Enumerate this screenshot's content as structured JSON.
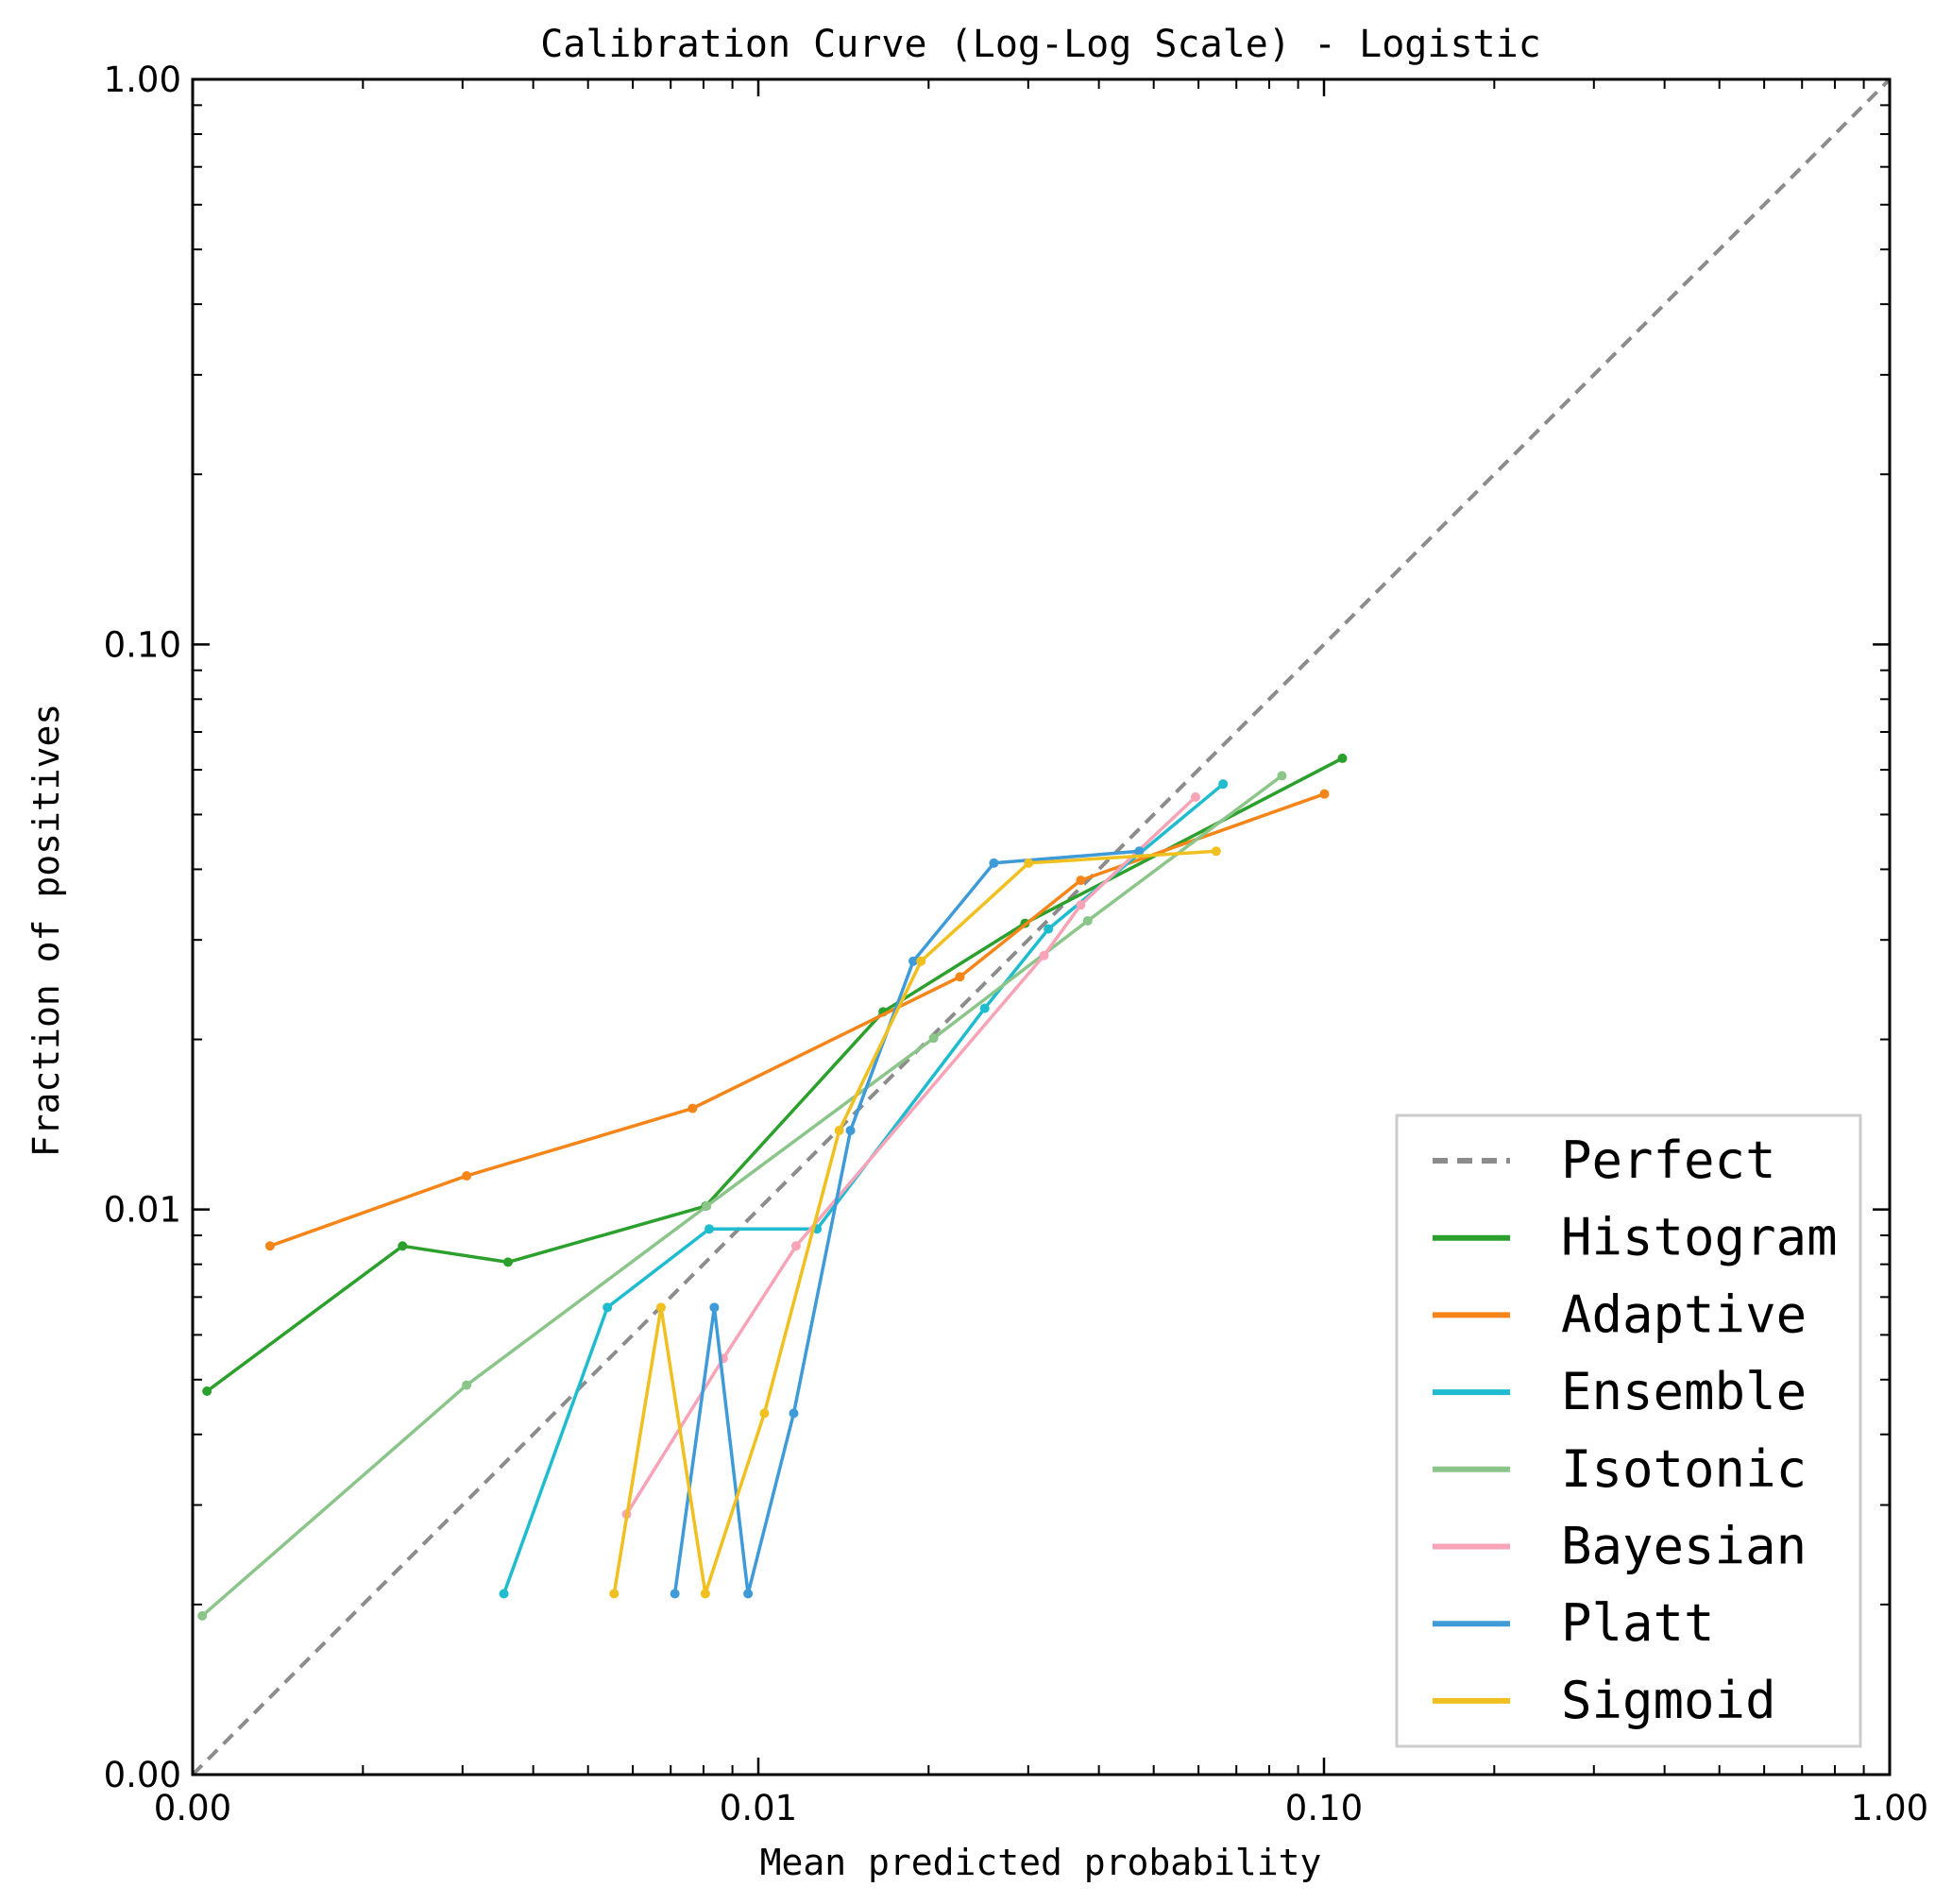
{
  "chart_data": {
    "type": "line",
    "title": "Calibration Curve (Log-Log Scale) - Logistic",
    "xlabel": "Mean predicted probability",
    "ylabel": "Fraction of positives",
    "x_scale": "log",
    "y_scale": "log",
    "xlim": [
      0.001,
      1.0
    ],
    "ylim": [
      0.001,
      1.0
    ],
    "x_ticks": [
      {
        "value": 0.001,
        "label": "0.00"
      },
      {
        "value": 0.01,
        "label": "0.01"
      },
      {
        "value": 0.1,
        "label": "0.10"
      },
      {
        "value": 1.0,
        "label": "1.00"
      }
    ],
    "y_ticks": [
      {
        "value": 0.001,
        "label": "0.00"
      },
      {
        "value": 0.01,
        "label": "0.01"
      },
      {
        "value": 0.1,
        "label": "0.10"
      },
      {
        "value": 1.0,
        "label": "1.00"
      }
    ],
    "grid": false,
    "legend_position": "bottom-right",
    "series": [
      {
        "name": "Perfect",
        "color": "#8c8c8c",
        "style": "dashed",
        "markers": false,
        "x": [
          0.001,
          1.0
        ],
        "y": [
          0.001,
          1.0
        ]
      },
      {
        "name": "Histogram",
        "color": "#2ca02c",
        "style": "solid",
        "markers": true,
        "x": [
          0.00106,
          0.00235,
          0.00361,
          0.00807,
          0.01662,
          0.02961,
          0.10778
        ],
        "y": [
          0.00477,
          0.00862,
          0.00807,
          0.01014,
          0.02238,
          0.0321,
          0.06287
        ]
      },
      {
        "name": "Adaptive",
        "color": "#f58518",
        "style": "solid",
        "markers": true,
        "x": [
          0.00137,
          0.00305,
          0.00765,
          0.02272,
          0.03715,
          0.10019
        ],
        "y": [
          0.00862,
          0.01147,
          0.0151,
          0.02581,
          0.03824,
          0.05437
        ]
      },
      {
        "name": "Ensemble",
        "color": "#1fbccf",
        "style": "solid",
        "markers": true,
        "x": [
          0.00355,
          0.00541,
          0.00819,
          0.0127,
          0.02513,
          0.03257,
          0.06632
        ],
        "y": [
          0.00209,
          0.00671,
          0.00924,
          0.00924,
          0.0227,
          0.03137,
          0.05661
        ]
      },
      {
        "name": "Isotonic",
        "color": "#8cc58a",
        "style": "solid",
        "markers": true,
        "x": [
          0.00104,
          0.00305,
          0.0081,
          0.02041,
          0.03822,
          0.08426
        ],
        "y": [
          0.00191,
          0.00489,
          0.01014,
          0.0201,
          0.03243,
          0.05855
        ]
      },
      {
        "name": "Bayesian",
        "color": "#f7a3b8",
        "style": "solid",
        "markers": true,
        "x": [
          0.00585,
          0.00867,
          0.01166,
          0.03199,
          0.03715,
          0.05927
        ],
        "y": [
          0.00289,
          0.00545,
          0.00862,
          0.02815,
          0.03459,
          0.05371
        ]
      },
      {
        "name": "Platt",
        "color": "#3e9bd8",
        "style": "solid",
        "markers": true,
        "x": [
          0.00712,
          0.00836,
          0.00959,
          0.01155,
          0.01455,
          0.01879,
          0.02609,
          0.04714
        ],
        "y": [
          0.00209,
          0.00671,
          0.00209,
          0.00436,
          0.0138,
          0.02751,
          0.04103,
          0.04306
        ]
      },
      {
        "name": "Sigmoid",
        "color": "#f0c020",
        "style": "solid",
        "markers": true,
        "x": [
          0.00556,
          0.00673,
          0.00806,
          0.01025,
          0.0139,
          0.01939,
          0.03005,
          0.06447
        ],
        "y": [
          0.00209,
          0.00671,
          0.00209,
          0.00436,
          0.0138,
          0.02751,
          0.04103,
          0.04306
        ]
      }
    ]
  }
}
